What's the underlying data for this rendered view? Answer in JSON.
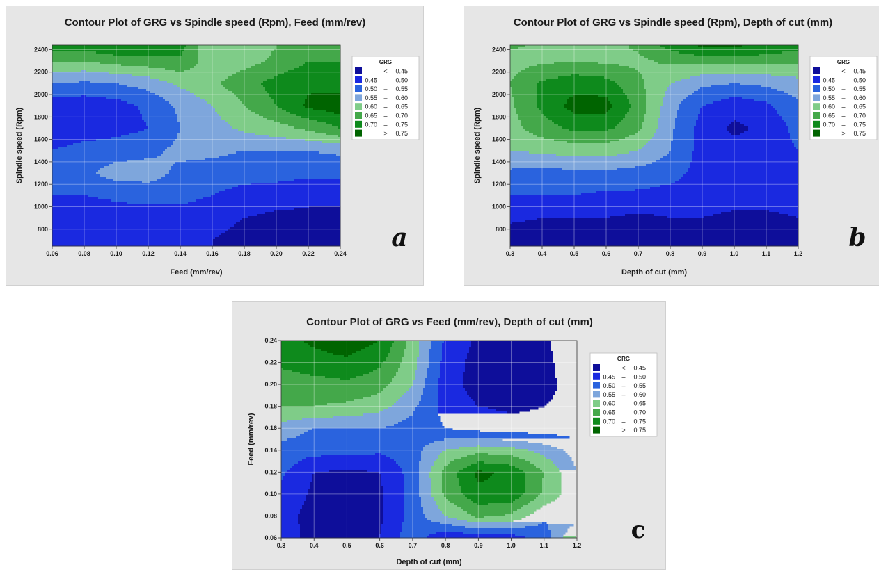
{
  "panel_labels": {
    "a": "a",
    "b": "b",
    "c": "c"
  },
  "legend": {
    "title": "GRG",
    "rows": [
      {
        "lo": "",
        "op": "<",
        "hi": "0.45",
        "color": "#0e0e9a"
      },
      {
        "lo": "0.45",
        "op": "–",
        "hi": "0.50",
        "color": "#1a29e0"
      },
      {
        "lo": "0.50",
        "op": "–",
        "hi": "0.55",
        "color": "#2a63de"
      },
      {
        "lo": "0.55",
        "op": "–",
        "hi": "0.60",
        "color": "#7ea6dc"
      },
      {
        "lo": "0.60",
        "op": "–",
        "hi": "0.65",
        "color": "#7fcc88"
      },
      {
        "lo": "0.65",
        "op": "–",
        "hi": "0.70",
        "color": "#44a84a"
      },
      {
        "lo": "0.70",
        "op": "–",
        "hi": "0.75",
        "color": "#0e8a1c"
      },
      {
        "lo": "",
        "op": ">",
        "hi": "0.75",
        "color": "#006400"
      }
    ]
  },
  "chart_data": [
    {
      "id": "a",
      "type": "heatmap",
      "subtype": "contour",
      "title": "Contour Plot of GRG vs Spindle speed (Rpm), Feed (mm/rev)",
      "xlabel": "Feed (mm/rev)",
      "ylabel": "Spindle speed (Rpm)",
      "xlim": [
        0.06,
        0.24
      ],
      "ylim": [
        650,
        2440
      ],
      "xticks": [
        "0.06",
        "0.08",
        "0.10",
        "0.12",
        "0.14",
        "0.16",
        "0.18",
        "0.20",
        "0.22",
        "0.24"
      ],
      "yticks": [
        "800",
        "1000",
        "1200",
        "1400",
        "1600",
        "1800",
        "2000",
        "2200",
        "2400"
      ],
      "grid": true,
      "x": [
        0.06,
        0.08,
        0.1,
        0.12,
        0.14,
        0.16,
        0.18,
        0.2,
        0.22,
        0.24
      ],
      "y": [
        700,
        900,
        1100,
        1300,
        1500,
        1700,
        1900,
        2100,
        2300,
        2440
      ],
      "z": [
        [
          0.46,
          0.46,
          0.46,
          0.46,
          0.46,
          0.45,
          0.44,
          0.43,
          0.43,
          0.43
        ],
        [
          0.48,
          0.47,
          0.47,
          0.47,
          0.47,
          0.46,
          0.45,
          0.44,
          0.44,
          0.44
        ],
        [
          0.5,
          0.5,
          0.51,
          0.52,
          0.52,
          0.5,
          0.48,
          0.47,
          0.46,
          0.46
        ],
        [
          0.53,
          0.54,
          0.57,
          0.57,
          0.54,
          0.53,
          0.52,
          0.52,
          0.51,
          0.51
        ],
        [
          0.5,
          0.52,
          0.53,
          0.54,
          0.56,
          0.56,
          0.55,
          0.55,
          0.55,
          0.56
        ],
        [
          0.46,
          0.47,
          0.48,
          0.5,
          0.55,
          0.58,
          0.61,
          0.63,
          0.66,
          0.7
        ],
        [
          0.47,
          0.47,
          0.48,
          0.51,
          0.56,
          0.6,
          0.65,
          0.7,
          0.76,
          0.78
        ],
        [
          0.55,
          0.54,
          0.55,
          0.57,
          0.61,
          0.64,
          0.68,
          0.72,
          0.74,
          0.73
        ],
        [
          0.66,
          0.65,
          0.67,
          0.68,
          0.69,
          0.62,
          0.63,
          0.66,
          0.7,
          0.7
        ],
        [
          0.72,
          0.73,
          0.75,
          0.74,
          0.72,
          0.6,
          0.61,
          0.65,
          0.68,
          0.68
        ]
      ]
    },
    {
      "id": "b",
      "type": "heatmap",
      "subtype": "contour",
      "title": "Contour Plot of GRG vs Spindle speed (Rpm), Depth of cut (mm)",
      "xlabel": "Depth of cut (mm)",
      "ylabel": "Spindle speed (Rpm)",
      "xlim": [
        0.3,
        1.2
      ],
      "ylim": [
        650,
        2440
      ],
      "xticks": [
        "0.3",
        "0.4",
        "0.5",
        "0.6",
        "0.7",
        "0.8",
        "0.9",
        "1.0",
        "1.1",
        "1.2"
      ],
      "yticks": [
        "800",
        "1000",
        "1200",
        "1400",
        "1600",
        "1800",
        "2000",
        "2200",
        "2400"
      ],
      "grid": true,
      "x": [
        0.3,
        0.4,
        0.5,
        0.6,
        0.7,
        0.8,
        0.9,
        1.0,
        1.1,
        1.2
      ],
      "y": [
        700,
        900,
        1100,
        1300,
        1500,
        1700,
        1900,
        2100,
        2300,
        2440
      ],
      "z": [
        [
          0.42,
          0.42,
          0.42,
          0.42,
          0.42,
          0.42,
          0.42,
          0.42,
          0.42,
          0.42
        ],
        [
          0.46,
          0.45,
          0.45,
          0.45,
          0.44,
          0.45,
          0.45,
          0.44,
          0.44,
          0.45
        ],
        [
          0.5,
          0.5,
          0.5,
          0.49,
          0.49,
          0.48,
          0.47,
          0.47,
          0.47,
          0.47
        ],
        [
          0.54,
          0.53,
          0.54,
          0.54,
          0.53,
          0.52,
          0.48,
          0.48,
          0.48,
          0.48
        ],
        [
          0.6,
          0.61,
          0.62,
          0.62,
          0.6,
          0.55,
          0.48,
          0.47,
          0.47,
          0.5
        ],
        [
          0.63,
          0.68,
          0.71,
          0.71,
          0.66,
          0.56,
          0.48,
          0.44,
          0.46,
          0.52
        ],
        [
          0.64,
          0.71,
          0.77,
          0.77,
          0.68,
          0.57,
          0.5,
          0.47,
          0.49,
          0.54
        ],
        [
          0.65,
          0.71,
          0.73,
          0.72,
          0.66,
          0.6,
          0.56,
          0.55,
          0.56,
          0.58
        ],
        [
          0.63,
          0.64,
          0.65,
          0.64,
          0.64,
          0.66,
          0.67,
          0.67,
          0.67,
          0.66
        ],
        [
          0.66,
          0.64,
          0.63,
          0.63,
          0.66,
          0.72,
          0.76,
          0.76,
          0.74,
          0.72
        ]
      ]
    },
    {
      "id": "c",
      "type": "heatmap",
      "subtype": "contour",
      "title": "Contour Plot of GRG vs Feed (mm/rev), Depth of cut (mm)",
      "xlabel": "Depth of cut (mm)",
      "ylabel": "Feed (mm/rev)",
      "xlim": [
        0.3,
        1.2
      ],
      "ylim": [
        0.06,
        0.24
      ],
      "xticks": [
        "0.3",
        "0.4",
        "0.5",
        "0.6",
        "0.7",
        "0.8",
        "0.9",
        "1.0",
        "1.1",
        "1.2"
      ],
      "yticks": [
        "0.06",
        "0.08",
        "0.10",
        "0.12",
        "0.14",
        "0.16",
        "0.18",
        "0.20",
        "0.22",
        "0.24"
      ],
      "grid": true,
      "x": [
        0.3,
        0.4,
        0.5,
        0.6,
        0.7,
        0.8,
        0.9,
        1.0,
        1.1,
        1.2
      ],
      "y": [
        0.06,
        0.08,
        0.1,
        0.12,
        0.14,
        0.16,
        0.18,
        0.2,
        0.22,
        0.24
      ],
      "z": [
        [
          0.48,
          0.43,
          0.44,
          0.45,
          0.53,
          0.46,
          0.47,
          0.48,
          0.52,
          0.66
        ],
        [
          0.47,
          0.43,
          0.42,
          0.44,
          0.52,
          0.6,
          0.66,
          0.64,
          0.56,
          0.57
        ],
        [
          0.49,
          0.44,
          0.43,
          0.44,
          0.52,
          0.66,
          0.74,
          0.74,
          0.64,
          0.56
        ],
        [
          0.51,
          0.45,
          0.44,
          0.45,
          0.52,
          0.67,
          0.76,
          0.74,
          0.65,
          0.55
        ],
        [
          0.53,
          0.52,
          0.52,
          0.51,
          0.53,
          0.6,
          0.63,
          0.62,
          0.58,
          0.53
        ],
        [
          0.58,
          0.55,
          0.55,
          0.55,
          0.53,
          0.5,
          0.48,
          0.47,
          0.47,
          0.47
        ],
        [
          0.65,
          0.65,
          0.64,
          0.62,
          0.56,
          0.48,
          0.45,
          0.44,
          0.45,
          0.47
        ],
        [
          0.67,
          0.68,
          0.69,
          0.67,
          0.6,
          0.47,
          0.43,
          0.42,
          0.43,
          0.48
        ],
        [
          0.71,
          0.73,
          0.74,
          0.71,
          0.62,
          0.48,
          0.43,
          0.42,
          0.43,
          0.5
        ],
        [
          0.73,
          0.76,
          0.78,
          0.75,
          0.63,
          0.49,
          0.44,
          0.43,
          0.44,
          0.5
        ]
      ]
    }
  ]
}
